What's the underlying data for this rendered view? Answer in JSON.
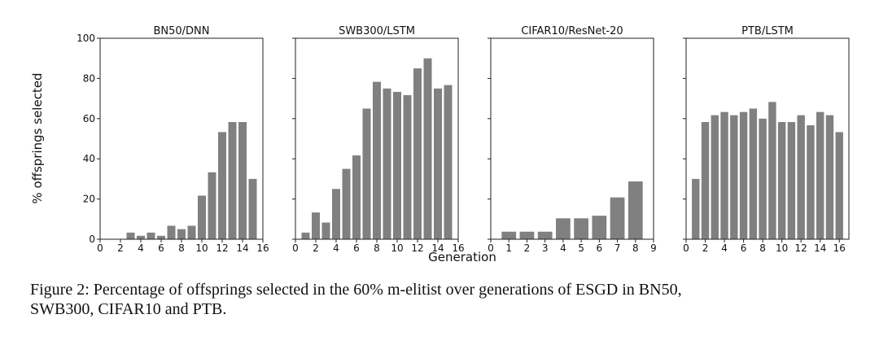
{
  "figure": {
    "ylabel": "% offsprings selected",
    "xlabel": "Generation",
    "bar_color": "#808080",
    "caption_line1": "Figure 2: Percentage of offsprings selected in the 60% m-elitist over generations of ESGD in BN50,",
    "caption_line2": "SWB300, CIFAR10 and PTB."
  },
  "chart_data": [
    {
      "type": "bar",
      "title": "BN50/DNN",
      "x": [
        1,
        2,
        3,
        4,
        5,
        6,
        7,
        8,
        9,
        10,
        11,
        12,
        13,
        14,
        15
      ],
      "values": [
        0,
        0,
        3.3,
        1.7,
        3.3,
        1.7,
        6.7,
        5,
        6.7,
        21.7,
        33.3,
        53.3,
        58.3,
        58.3,
        30
      ],
      "xlim": [
        0,
        16
      ],
      "ylim": [
        0,
        100
      ],
      "xticks": [
        0,
        2,
        4,
        6,
        8,
        10,
        12,
        14,
        16
      ],
      "yticks": [
        0,
        20,
        40,
        60,
        80,
        100
      ]
    },
    {
      "type": "bar",
      "title": "SWB300/LSTM",
      "x": [
        1,
        2,
        3,
        4,
        5,
        6,
        7,
        8,
        9,
        10,
        11,
        12,
        13,
        14,
        15
      ],
      "values": [
        3.3,
        13.3,
        8.3,
        25,
        35,
        41.7,
        65,
        78.3,
        75,
        73.3,
        71.7,
        85,
        90,
        75,
        76.7
      ],
      "xlim": [
        0,
        16
      ],
      "ylim": [
        0,
        100
      ],
      "xticks": [
        0,
        2,
        4,
        6,
        8,
        10,
        12,
        14,
        16
      ],
      "yticks": [
        0,
        20,
        40,
        60,
        80,
        100
      ]
    },
    {
      "type": "bar",
      "title": "CIFAR10/ResNet-20",
      "x": [
        1,
        2,
        3,
        4,
        5,
        6,
        7,
        8
      ],
      "values": [
        3.75,
        3.75,
        3.75,
        10.4,
        10.4,
        11.7,
        20.8,
        28.75
      ],
      "xlim": [
        0,
        9
      ],
      "ylim": [
        0,
        100
      ],
      "xticks": [
        0,
        1,
        2,
        3,
        4,
        5,
        6,
        7,
        8,
        9
      ],
      "yticks": [
        0,
        20,
        40,
        60,
        80,
        100
      ]
    },
    {
      "type": "bar",
      "title": "PTB/LSTM",
      "x": [
        1,
        2,
        3,
        4,
        5,
        6,
        7,
        8,
        9,
        10,
        11,
        12,
        13,
        14,
        15,
        16
      ],
      "values": [
        30,
        58.3,
        61.7,
        63.3,
        61.7,
        63.3,
        65,
        60,
        68.3,
        58.3,
        58.3,
        61.7,
        56.7,
        63.3,
        61.7,
        53.3
      ],
      "xlim": [
        0,
        17
      ],
      "ylim": [
        0,
        100
      ],
      "xticks": [
        0,
        2,
        4,
        6,
        8,
        10,
        12,
        14,
        16
      ],
      "yticks": [
        0,
        20,
        40,
        60,
        80,
        100
      ]
    }
  ]
}
